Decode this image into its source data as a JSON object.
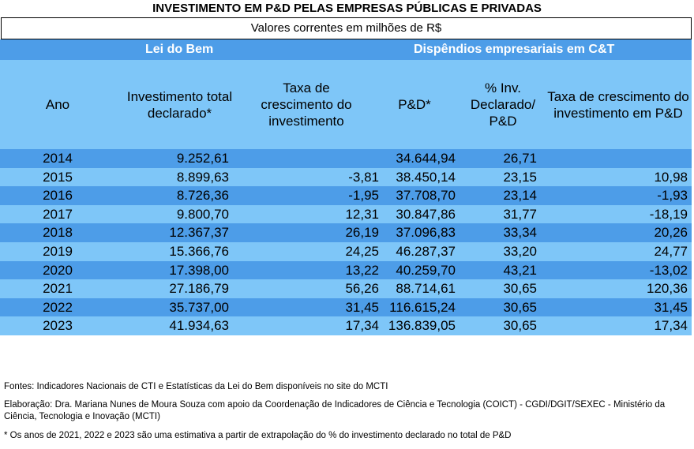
{
  "title": "INVESTIMENTO EM P&D PELAS EMPRESAS PÚBLICAS E PRIVADAS",
  "subtitle": "Valores correntes em milhões de R$",
  "groups": {
    "lei_do_bem": "Lei do Bem",
    "dispendios": "Dispêndios empresariais em C&T"
  },
  "headers": {
    "ano": "Ano",
    "investimento": "Investimento total declarado*",
    "taxa_inv": "Taxa de crescimento do investimento",
    "pd": "P&D*",
    "pct": "% Inv. Declarado/ P&D",
    "taxa_pd": "Taxa de crescimento do investimento em P&D"
  },
  "rows": [
    {
      "ano": "2014",
      "inv": "9.252,61",
      "taxa_inv": "",
      "pd": "34.644,94",
      "pct": "26,71",
      "taxa_pd": ""
    },
    {
      "ano": "2015",
      "inv": "8.899,63",
      "taxa_inv": "-3,81",
      "pd": "38.450,14",
      "pct": "23,15",
      "taxa_pd": "10,98"
    },
    {
      "ano": "2016",
      "inv": "8.726,36",
      "taxa_inv": "-1,95",
      "pd": "37.708,70",
      "pct": "23,14",
      "taxa_pd": "-1,93"
    },
    {
      "ano": "2017",
      "inv": "9.800,70",
      "taxa_inv": "12,31",
      "pd": "30.847,86",
      "pct": "31,77",
      "taxa_pd": "-18,19"
    },
    {
      "ano": "2018",
      "inv": "12.367,37",
      "taxa_inv": "26,19",
      "pd": "37.096,83",
      "pct": "33,34",
      "taxa_pd": "20,26"
    },
    {
      "ano": "2019",
      "inv": "15.366,76",
      "taxa_inv": "24,25",
      "pd": "46.287,37",
      "pct": "33,20",
      "taxa_pd": "24,77"
    },
    {
      "ano": "2020",
      "inv": "17.398,00",
      "taxa_inv": "13,22",
      "pd": "40.259,70",
      "pct": "43,21",
      "taxa_pd": "-13,02"
    },
    {
      "ano": "2021",
      "inv": "27.186,79",
      "taxa_inv": "56,26",
      "pd": "88.714,61",
      "pct": "30,65",
      "taxa_pd": "120,36"
    },
    {
      "ano": "2022",
      "inv": "35.737,00",
      "taxa_inv": "31,45",
      "pd": "116.615,24",
      "pct": "30,65",
      "taxa_pd": "31,45"
    },
    {
      "ano": "2023",
      "inv": "41.934,63",
      "taxa_inv": "17,34",
      "pd": "136.839,05",
      "pct": "30,65",
      "taxa_pd": "17,34"
    }
  ],
  "notes": {
    "fontes": "Fontes: Indicadores Nacionais de CTI e Estatísticas da Lei do Bem disponíveis no site do MCTI",
    "elaboracao": "Elaboração:  Dra. Mariana Nunes de Moura Souza com apoio da Coordenação de Indicadores de Ciência e Tecnologia (COICT) - CGDI/DGIT/SEXEC - Ministério da Ciência, Tecnologia e Inovação (MCTI)",
    "asterisco": "* Os anos de 2021, 2022 e 2023 são uma estimativa a partir de extrapolação do % do investimento declarado no total de P&D"
  }
}
